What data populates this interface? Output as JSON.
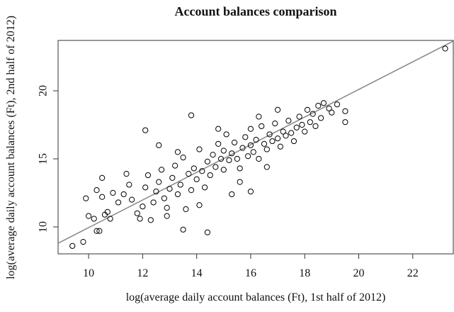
{
  "chart_data": {
    "type": "scatter",
    "title": "Account balances comparison",
    "x_label": "log(average daily account balances (Ft), 1st half of 2012)",
    "y_label": "log(average daily account balances (Ft), 2nd half of 2012)",
    "xlim": [
      8.87,
      23.5
    ],
    "ylim": [
      8.02,
      23.7
    ],
    "xticks": [
      10,
      12,
      14,
      16,
      18,
      20,
      22
    ],
    "yticks": [
      10,
      15,
      20
    ],
    "color": "#000000",
    "line": {
      "x": [
        8.87,
        23.5
      ],
      "y": [
        8.8,
        23.65
      ],
      "color": "#888888"
    },
    "x": [
      10.0,
      10.2,
      10.6,
      10.8,
      10.7,
      10.3,
      10.5,
      10.9,
      11.1,
      11.3,
      11.5,
      11.6,
      11.8,
      11.9,
      12.0,
      12.1,
      12.2,
      12.3,
      12.4,
      12.5,
      12.6,
      12.7,
      12.8,
      12.9,
      13.0,
      13.1,
      13.2,
      13.3,
      13.4,
      13.5,
      13.6,
      13.7,
      13.8,
      13.9,
      14.0,
      14.1,
      14.2,
      14.3,
      14.4,
      14.5,
      14.6,
      14.7,
      14.8,
      14.9,
      15.0,
      15.0,
      15.1,
      15.2,
      15.3,
      15.3,
      15.4,
      15.5,
      15.6,
      15.7,
      15.8,
      15.9,
      16.0,
      16.0,
      16.1,
      16.2,
      16.3,
      16.4,
      16.5,
      16.6,
      16.7,
      16.8,
      16.9,
      17.0,
      17.1,
      17.2,
      17.3,
      17.4,
      17.5,
      17.6,
      17.7,
      17.8,
      17.9,
      18.0,
      18.1,
      18.2,
      18.3,
      18.5,
      18.6,
      18.7,
      18.9,
      19.0,
      19.2,
      18.4,
      17.0,
      16.3,
      14.8,
      13.3,
      12.6,
      11.4,
      15.6,
      14.1,
      12.9,
      16.6,
      23.2,
      9.4,
      9.8,
      10.3,
      10.4,
      12.1,
      13.8,
      14.4,
      13.5,
      16.0,
      19.5,
      19.5,
      9.9,
      10.5
    ],
    "y": [
      10.8,
      10.6,
      10.9,
      10.6,
      11.1,
      12.7,
      12.2,
      12.5,
      11.8,
      12.4,
      13.1,
      12.0,
      11.0,
      10.6,
      11.5,
      12.9,
      13.8,
      10.5,
      11.8,
      12.6,
      13.3,
      14.2,
      12.1,
      11.4,
      12.8,
      13.6,
      14.5,
      12.4,
      13.1,
      15.1,
      11.3,
      13.9,
      12.7,
      14.3,
      13.5,
      15.7,
      14.1,
      12.9,
      14.8,
      13.8,
      15.3,
      14.4,
      16.1,
      15.0,
      14.2,
      15.6,
      16.8,
      14.9,
      15.4,
      12.4,
      16.2,
      15.0,
      14.3,
      15.8,
      16.6,
      15.2,
      16.0,
      17.2,
      15.5,
      16.4,
      15.0,
      17.4,
      16.1,
      15.7,
      16.8,
      16.3,
      17.6,
      16.5,
      15.9,
      17.0,
      16.7,
      17.8,
      16.9,
      16.3,
      17.3,
      18.1,
      17.5,
      17.0,
      18.6,
      17.7,
      18.3,
      18.9,
      18.0,
      19.1,
      18.7,
      18.4,
      19.0,
      17.4,
      18.6,
      18.1,
      17.2,
      15.5,
      16.0,
      13.9,
      13.3,
      11.6,
      10.8,
      14.4,
      23.1,
      8.6,
      8.9,
      9.7,
      9.7,
      17.1,
      18.2,
      9.6,
      9.8,
      12.6,
      17.7,
      18.5,
      12.1,
      13.6
    ]
  }
}
